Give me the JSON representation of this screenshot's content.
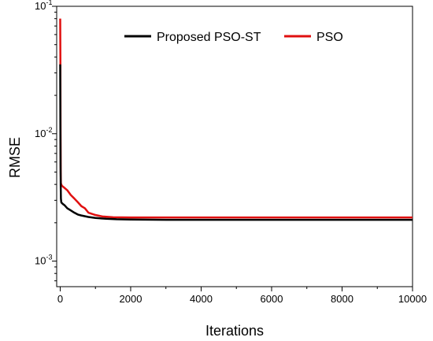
{
  "chart_data": {
    "type": "line",
    "xlabel": "Iterations",
    "ylabel": "RMSE",
    "xlim": [
      -100,
      10000
    ],
    "ylim": [
      0.00063,
      0.1
    ],
    "yscale": "log",
    "grid": false,
    "legend_position": "top",
    "x_ticks": [
      "0",
      "2000",
      "4000",
      "6000",
      "8000",
      "10000"
    ],
    "x_tick_values": [
      0,
      2000,
      4000,
      6000,
      8000,
      10000
    ],
    "y_ticks": [
      {
        "value": 0.001,
        "base": "10",
        "exp": "-3"
      },
      {
        "value": 0.01,
        "base": "10",
        "exp": "-2"
      },
      {
        "value": 0.1,
        "base": "10",
        "exp": "-1"
      }
    ],
    "series": [
      {
        "name": "Proposed PSO-ST",
        "color": "#000000",
        "x": [
          0,
          5,
          10,
          15,
          20,
          30,
          50,
          80,
          120,
          200,
          300,
          400,
          500,
          600,
          800,
          1000,
          1300,
          1600,
          2000,
          3000,
          5000,
          8000,
          10000
        ],
        "y": [
          0.035,
          0.012,
          0.0055,
          0.0038,
          0.0031,
          0.0029,
          0.00285,
          0.0028,
          0.00275,
          0.0026,
          0.0025,
          0.0024,
          0.00232,
          0.00228,
          0.00222,
          0.00218,
          0.00215,
          0.00213,
          0.00212,
          0.00211,
          0.00211,
          0.00211,
          0.00211
        ]
      },
      {
        "name": "PSO",
        "color": "#e01010",
        "x": [
          0,
          5,
          10,
          15,
          20,
          30,
          50,
          100,
          200,
          300,
          400,
          500,
          600,
          700,
          800,
          1000,
          1200,
          1500,
          2000,
          3000,
          5000,
          8000,
          10000
        ],
        "y": [
          0.08,
          0.04,
          0.012,
          0.005,
          0.0041,
          0.004,
          0.0039,
          0.0038,
          0.0036,
          0.0033,
          0.0031,
          0.0029,
          0.0027,
          0.0026,
          0.0024,
          0.0023,
          0.00224,
          0.00221,
          0.0022,
          0.0022,
          0.0022,
          0.0022,
          0.0022
        ]
      }
    ]
  }
}
